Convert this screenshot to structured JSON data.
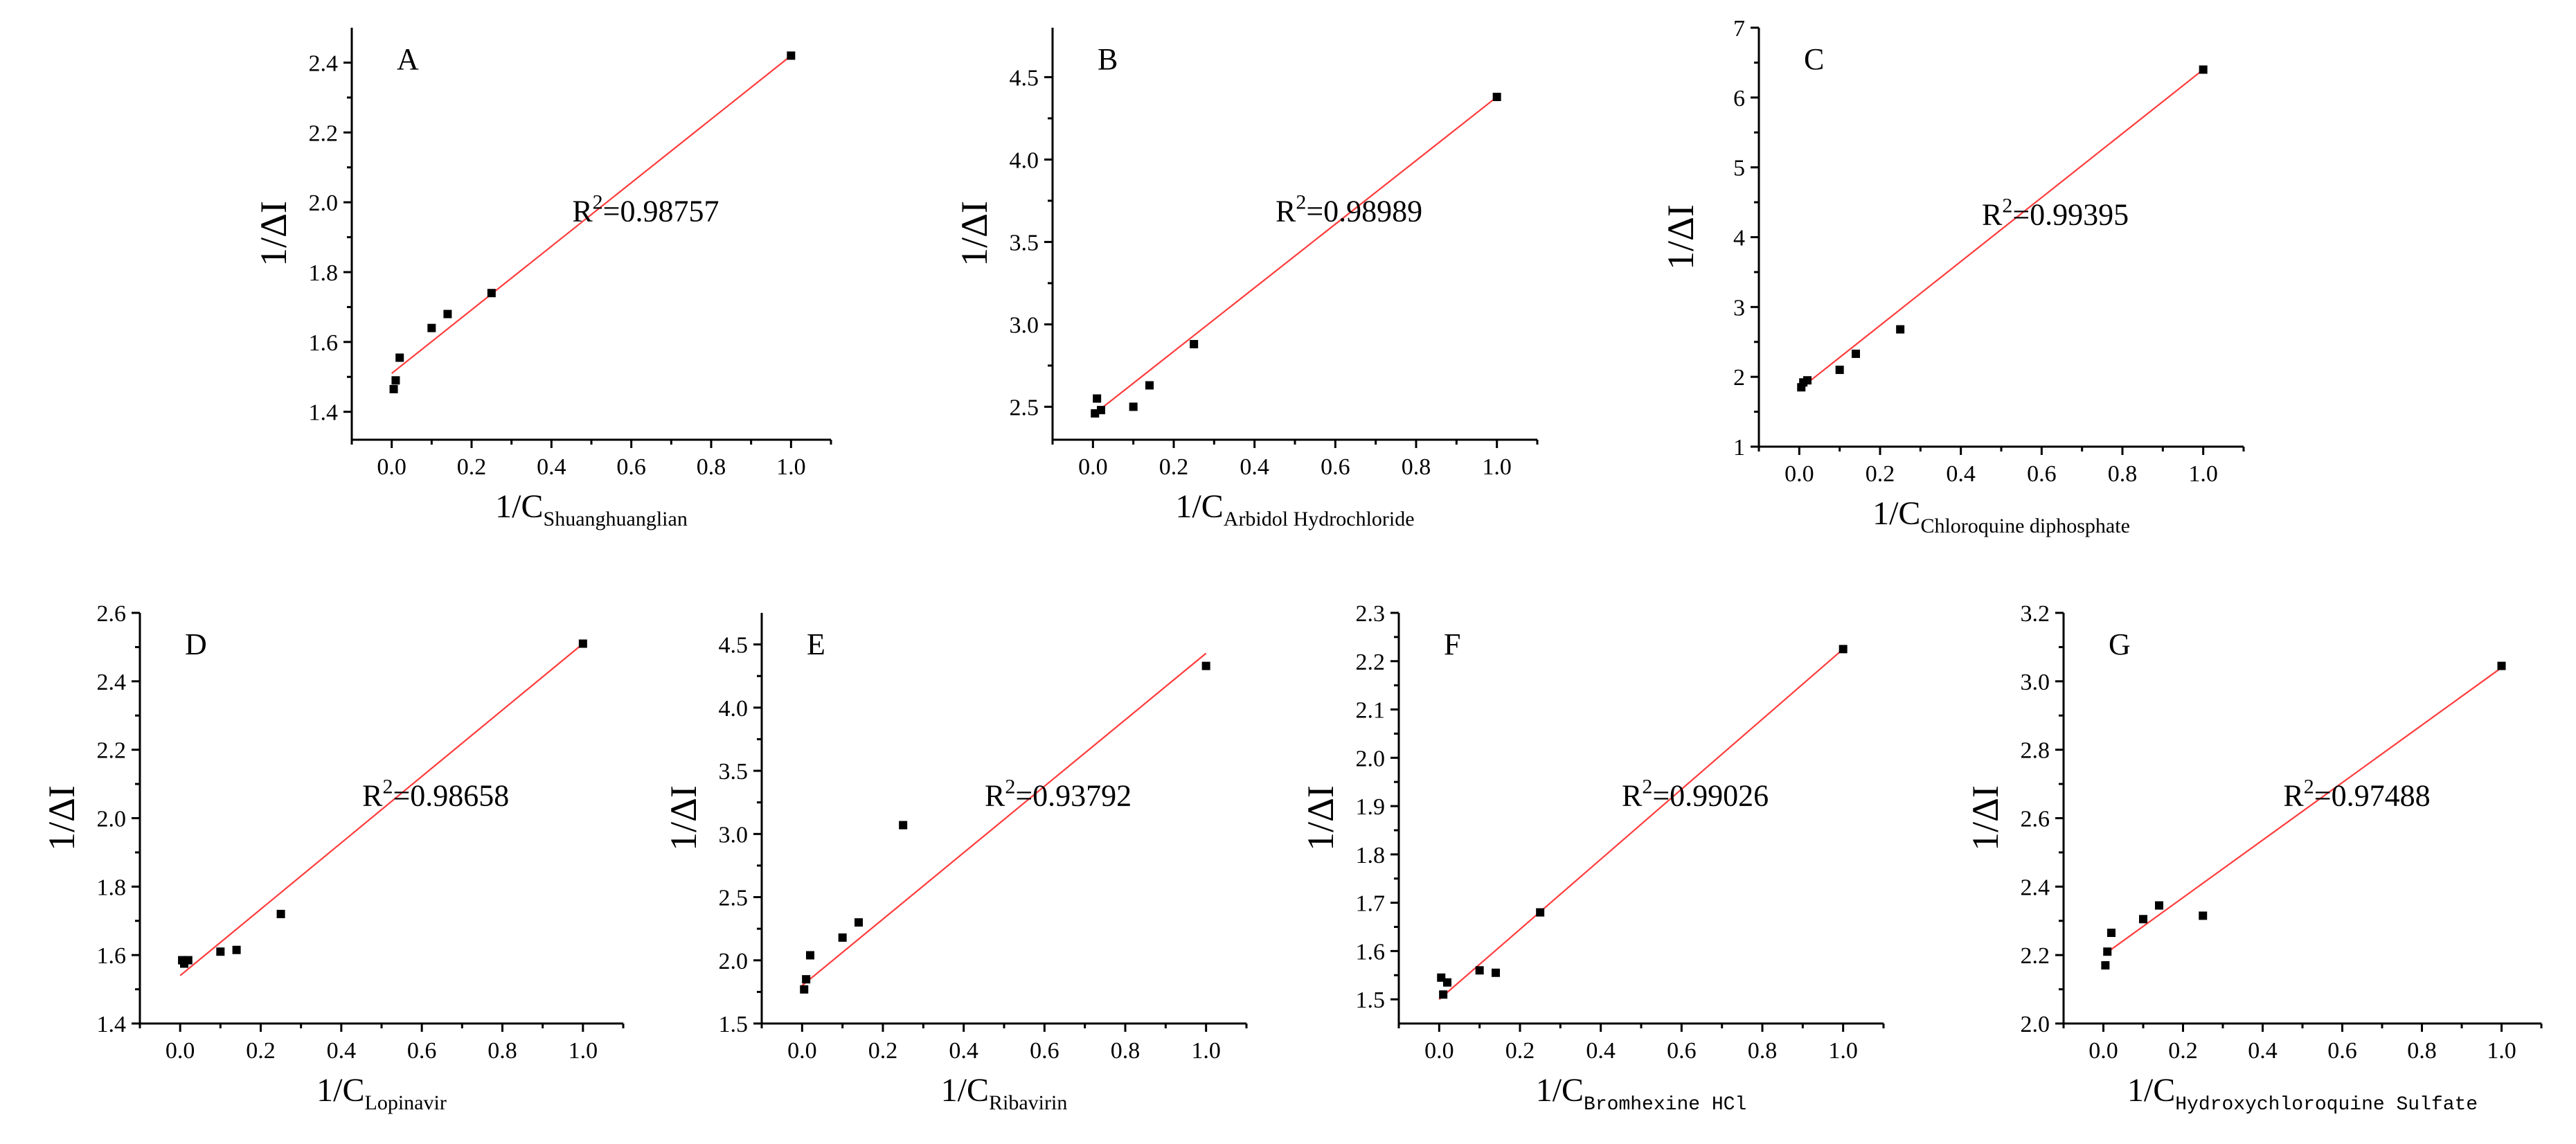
{
  "colors": {
    "fit_line": "#ff3b3b",
    "points": "#000000",
    "axes": "#000000"
  },
  "chart_data": [
    {
      "type": "scatter",
      "panel": "A",
      "xlabel": "1/C",
      "xlabel_sub": "Shuanghuanglian",
      "ylabel": "1/ΔI",
      "xlim": [
        -0.1,
        1.1
      ],
      "ylim": [
        1.32,
        2.5
      ],
      "xticks": [
        "0.0",
        "0.2",
        "0.4",
        "0.6",
        "0.8",
        "1.0"
      ],
      "yticks": [
        "1.4",
        "1.6",
        "1.8",
        "2.0",
        "2.2",
        "2.4"
      ],
      "x": [
        0.005,
        0.01,
        0.02,
        0.1,
        0.14,
        0.25,
        1.0
      ],
      "y": [
        1.465,
        1.49,
        1.555,
        1.64,
        1.68,
        1.74,
        2.42
      ],
      "fit": {
        "x": [
          0.0,
          1.0
        ],
        "y": [
          1.51,
          2.42
        ]
      },
      "r2_prefix": "R",
      "r2_sup": "2",
      "r2_value": "=0.98757"
    },
    {
      "type": "scatter",
      "panel": "B",
      "xlabel": "1/C",
      "xlabel_sub": "Arbidol Hydrochloride",
      "ylabel": "1/ΔI",
      "xlim": [
        -0.1,
        1.1
      ],
      "ylim": [
        2.3,
        4.8
      ],
      "xticks": [
        "0.0",
        "0.2",
        "0.4",
        "0.6",
        "0.8",
        "1.0"
      ],
      "yticks": [
        "2.5",
        "3.0",
        "3.5",
        "4.0",
        "4.5"
      ],
      "x": [
        0.005,
        0.01,
        0.02,
        0.1,
        0.14,
        0.25,
        1.0
      ],
      "y": [
        2.46,
        2.55,
        2.48,
        2.5,
        2.63,
        2.88,
        4.38
      ],
      "fit": {
        "x": [
          0.0,
          1.0
        ],
        "y": [
          2.45,
          4.38
        ]
      },
      "r2_prefix": "R",
      "r2_sup": "2",
      "r2_value": "=0.98989"
    },
    {
      "type": "scatter",
      "panel": "C",
      "xlabel": "1/C",
      "xlabel_sub": "Chloroquine diphosphate",
      "ylabel": "1/ΔI",
      "xlim": [
        -0.1,
        1.1
      ],
      "ylim": [
        1.0,
        7.0
      ],
      "xticks": [
        "0.0",
        "0.2",
        "0.4",
        "0.6",
        "0.8",
        "1.0"
      ],
      "yticks": [
        "1",
        "2",
        "3",
        "4",
        "5",
        "6",
        "7"
      ],
      "x": [
        0.005,
        0.01,
        0.02,
        0.1,
        0.14,
        0.25,
        1.0
      ],
      "y": [
        1.85,
        1.92,
        1.95,
        2.1,
        2.33,
        2.68,
        6.4
      ],
      "fit": {
        "x": [
          0.0,
          1.0
        ],
        "y": [
          1.82,
          6.4
        ]
      },
      "r2_prefix": "R",
      "r2_sup": "2",
      "r2_value": "=0.99395"
    },
    {
      "type": "scatter",
      "panel": "D",
      "xlabel": "1/C",
      "xlabel_sub": "Lopinavir",
      "ylabel": "1/ΔI",
      "xlim": [
        -0.1,
        1.1
      ],
      "ylim": [
        1.4,
        2.6
      ],
      "xticks": [
        "0.0",
        "0.2",
        "0.4",
        "0.6",
        "0.8",
        "1.0"
      ],
      "yticks": [
        "1.4",
        "1.6",
        "1.8",
        "2.0",
        "2.2",
        "2.4",
        "2.6"
      ],
      "x": [
        0.005,
        0.01,
        0.02,
        0.1,
        0.14,
        0.25,
        1.0
      ],
      "y": [
        1.585,
        1.575,
        1.585,
        1.61,
        1.615,
        1.72,
        2.51
      ],
      "fit": {
        "x": [
          0.0,
          1.0
        ],
        "y": [
          1.54,
          2.51
        ]
      },
      "r2_prefix": "R",
      "r2_sup": "2",
      "r2_value": "=0.98658"
    },
    {
      "type": "scatter",
      "panel": "E",
      "xlabel": "1/C",
      "xlabel_sub": "Ribavirin",
      "ylabel": "1/ΔI",
      "xlim": [
        -0.1,
        1.1
      ],
      "ylim": [
        1.5,
        4.75
      ],
      "xticks": [
        "0.0",
        "0.2",
        "0.4",
        "0.6",
        "0.8",
        "1.0"
      ],
      "yticks": [
        "1.5",
        "2.0",
        "2.5",
        "3.0",
        "3.5",
        "4.0",
        "4.5"
      ],
      "x": [
        0.005,
        0.01,
        0.02,
        0.1,
        0.14,
        0.25,
        1.0
      ],
      "y": [
        1.77,
        1.85,
        2.04,
        2.18,
        2.3,
        3.07,
        4.33
      ],
      "fit": {
        "x": [
          0.0,
          1.0
        ],
        "y": [
          1.8,
          4.43
        ]
      },
      "r2_prefix": "R",
      "r2_sup": "2",
      "r2_value": "=0.93792"
    },
    {
      "type": "scatter",
      "panel": "F",
      "xlabel": "1/C",
      "xlabel_sub": "Bromhexine HCl",
      "ylabel": "1/ΔI",
      "xlim": [
        -0.1,
        1.1
      ],
      "ylim": [
        1.45,
        2.3
      ],
      "xticks": [
        "0.0",
        "0.2",
        "0.4",
        "0.6",
        "0.8",
        "1.0"
      ],
      "yticks": [
        "1.5",
        "1.6",
        "1.7",
        "1.8",
        "1.9",
        "2.0",
        "2.1",
        "2.2",
        "2.3"
      ],
      "x": [
        0.005,
        0.01,
        0.02,
        0.1,
        0.14,
        0.25,
        1.0
      ],
      "y": [
        1.545,
        1.51,
        1.535,
        1.56,
        1.555,
        1.68,
        2.225
      ],
      "fit": {
        "x": [
          0.0,
          1.0
        ],
        "y": [
          1.5,
          2.225
        ]
      },
      "r2_prefix": "R",
      "r2_sup": "2",
      "r2_value": "=0.99026"
    },
    {
      "type": "scatter",
      "panel": "G",
      "xlabel": "1/C",
      "xlabel_sub": "Hydroxychloroquine Sulfate",
      "ylabel": "1/ΔI",
      "xlim": [
        -0.1,
        1.1
      ],
      "ylim": [
        2.0,
        3.2
      ],
      "xticks": [
        "0.0",
        "0.2",
        "0.4",
        "0.6",
        "0.8",
        "1.0"
      ],
      "yticks": [
        "2.0",
        "2.2",
        "2.4",
        "2.6",
        "2.8",
        "3.0",
        "3.2"
      ],
      "x": [
        0.005,
        0.01,
        0.02,
        0.1,
        0.14,
        0.25,
        1.0
      ],
      "y": [
        2.17,
        2.21,
        2.265,
        2.305,
        2.345,
        2.315,
        3.045
      ],
      "fit": {
        "x": [
          0.0,
          1.0
        ],
        "y": [
          2.2,
          3.04
        ]
      },
      "r2_prefix": "R",
      "r2_sup": "2",
      "r2_value": "=0.97488"
    }
  ]
}
